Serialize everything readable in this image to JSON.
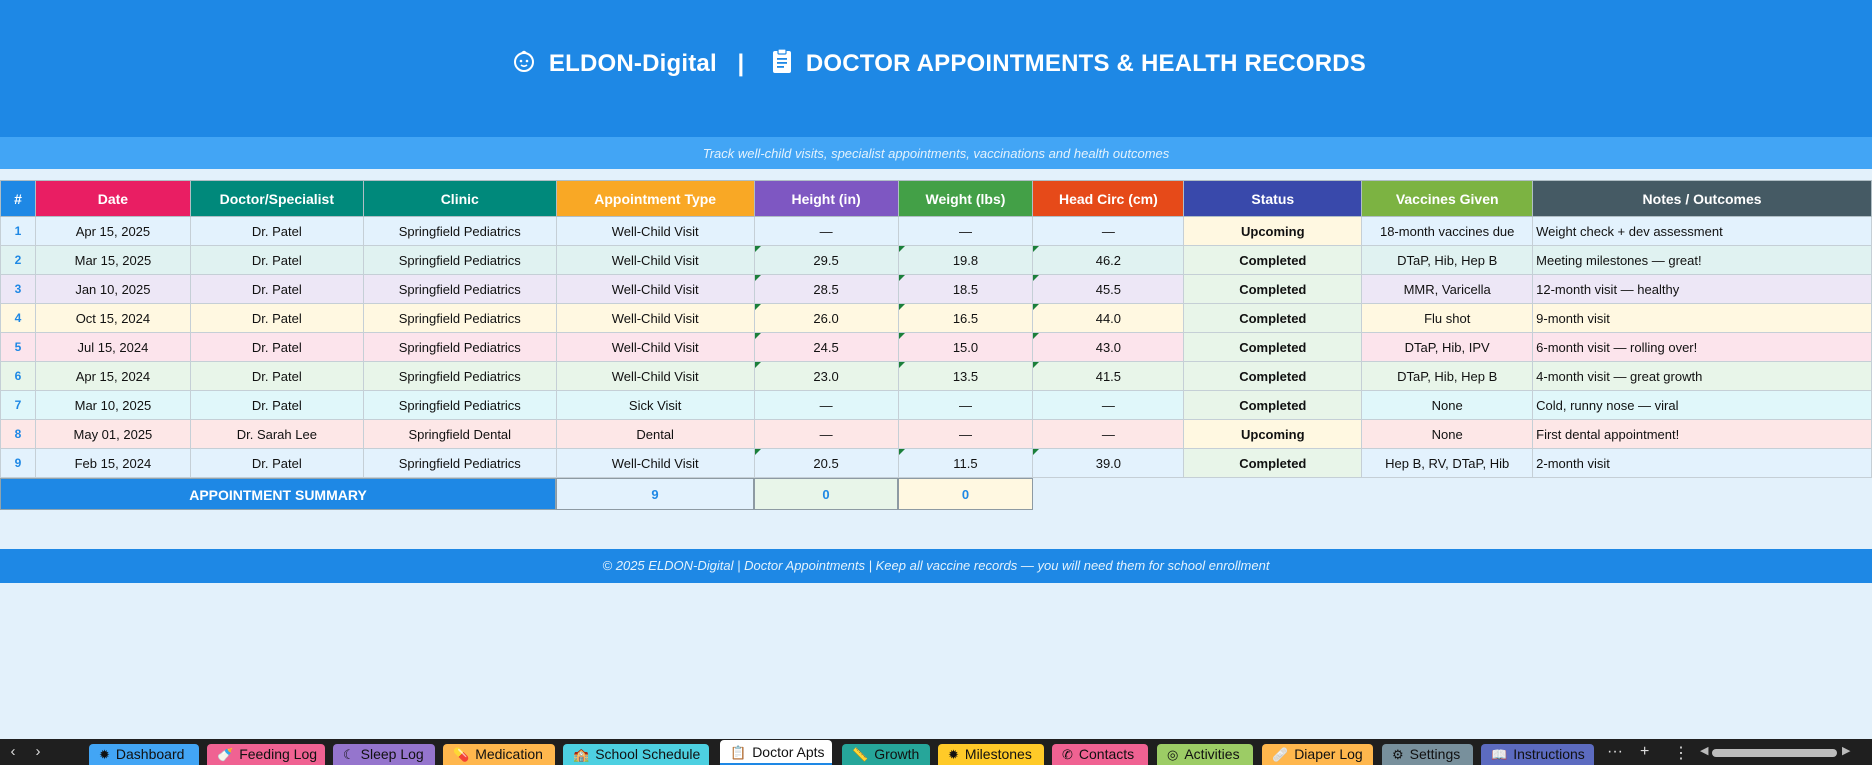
{
  "header": {
    "brand": "ELDON-Digital",
    "separator": "|",
    "title": "DOCTOR APPOINTMENTS & HEALTH RECORDS",
    "subtitle": "Track well-child visits, specialist appointments, vaccinations and health outcomes",
    "brand_icon": "baby-face-icon",
    "title_icon": "clipboard-icon"
  },
  "table": {
    "columns": [
      {
        "label": "#",
        "color": "#1e88e5"
      },
      {
        "label": "Date",
        "color": "#e91e63"
      },
      {
        "label": "Doctor/Specialist",
        "color": "#00897b"
      },
      {
        "label": "Clinic",
        "color": "#00897b"
      },
      {
        "label": "Appointment Type",
        "color": "#f9a825"
      },
      {
        "label": "Height (in)",
        "color": "#7e57c2"
      },
      {
        "label": "Weight (lbs)",
        "color": "#43a047"
      },
      {
        "label": "Head Circ (cm)",
        "color": "#e64a19"
      },
      {
        "label": "Status",
        "color": "#3949ab"
      },
      {
        "label": "Vaccines Given",
        "color": "#7cb342"
      },
      {
        "label": "Notes / Outcomes",
        "color": "#455a64"
      }
    ],
    "rows": [
      {
        "num": "1",
        "date": "Apr 15, 2025",
        "doctor": "Dr. Patel",
        "clinic": "Springfield Pediatrics",
        "type": "Well-Child Visit",
        "height": "—",
        "weight": "—",
        "head": "—",
        "status": "Upcoming",
        "vaccines": "18-month vaccines due",
        "notes": "Weight check + dev assessment",
        "bg": "#e3f2fd"
      },
      {
        "num": "2",
        "date": "Mar 15, 2025",
        "doctor": "Dr. Patel",
        "clinic": "Springfield Pediatrics",
        "type": "Well-Child Visit",
        "height": "29.5",
        "weight": "19.8",
        "head": "46.2",
        "status": "Completed",
        "vaccines": "DTaP, Hib, Hep B",
        "notes": "Meeting milestones — great!",
        "bg": "#e0f2f1"
      },
      {
        "num": "3",
        "date": "Jan 10, 2025",
        "doctor": "Dr. Patel",
        "clinic": "Springfield Pediatrics",
        "type": "Well-Child Visit",
        "height": "28.5",
        "weight": "18.5",
        "head": "45.5",
        "status": "Completed",
        "vaccines": "MMR, Varicella",
        "notes": "12-month visit — healthy",
        "bg": "#ede7f6"
      },
      {
        "num": "4",
        "date": "Oct 15, 2024",
        "doctor": "Dr. Patel",
        "clinic": "Springfield Pediatrics",
        "type": "Well-Child Visit",
        "height": "26.0",
        "weight": "16.5",
        "head": "44.0",
        "status": "Completed",
        "vaccines": "Flu shot",
        "notes": "9-month visit",
        "bg": "#fff8e1"
      },
      {
        "num": "5",
        "date": "Jul 15, 2024",
        "doctor": "Dr. Patel",
        "clinic": "Springfield Pediatrics",
        "type": "Well-Child Visit",
        "height": "24.5",
        "weight": "15.0",
        "head": "43.0",
        "status": "Completed",
        "vaccines": "DTaP, Hib, IPV",
        "notes": "6-month visit — rolling over!",
        "bg": "#fce4ec"
      },
      {
        "num": "6",
        "date": "Apr 15, 2024",
        "doctor": "Dr. Patel",
        "clinic": "Springfield Pediatrics",
        "type": "Well-Child Visit",
        "height": "23.0",
        "weight": "13.5",
        "head": "41.5",
        "status": "Completed",
        "vaccines": "DTaP, Hib, Hep B",
        "notes": "4-month visit — great growth",
        "bg": "#e8f5e9"
      },
      {
        "num": "7",
        "date": "Mar 10, 2025",
        "doctor": "Dr. Patel",
        "clinic": "Springfield Pediatrics",
        "type": "Sick Visit",
        "height": "—",
        "weight": "—",
        "head": "—",
        "status": "Completed",
        "vaccines": "None",
        "notes": "Cold, runny nose — viral",
        "bg": "#e0f7fa"
      },
      {
        "num": "8",
        "date": "May 01, 2025",
        "doctor": "Dr. Sarah Lee",
        "clinic": "Springfield Dental",
        "type": "Dental",
        "height": "—",
        "weight": "—",
        "head": "—",
        "status": "Upcoming",
        "vaccines": "None",
        "notes": "First dental appointment!",
        "bg": "#fde7e7"
      },
      {
        "num": "9",
        "date": "Feb 15, 2024",
        "doctor": "Dr. Patel",
        "clinic": "Springfield Pediatrics",
        "type": "Well-Child Visit",
        "height": "20.5",
        "weight": "11.5",
        "head": "39.0",
        "status": "Completed",
        "vaccines": "Hep B, RV, DTaP, Hib",
        "notes": "2-month visit",
        "bg": "#e3f2fd"
      }
    ]
  },
  "summary": {
    "label": "APPOINTMENT SUMMARY",
    "count": "9",
    "value2": "0",
    "value3": "0"
  },
  "footer": {
    "text": "© 2025 ELDON-Digital | Doctor Appointments | Keep all vaccine records — you will need them for school enrollment"
  },
  "sheet_tabs": [
    {
      "label": "Dashboard",
      "icon": "sun-icon",
      "color": "#42a5f5"
    },
    {
      "label": "Feeding Log",
      "icon": "bottle-icon",
      "color": "#f06292"
    },
    {
      "label": "Sleep Log",
      "icon": "moon-icon",
      "color": "#9575cd"
    },
    {
      "label": "Medication",
      "icon": "pill-icon",
      "color": "#ffb74d"
    },
    {
      "label": "School Schedule",
      "icon": "school-icon",
      "color": "#4dd0e1"
    },
    {
      "label": "Doctor Apts",
      "icon": "clipboard-icon",
      "color": "#ffffff",
      "active": true
    },
    {
      "label": "Growth",
      "icon": "ruler-icon",
      "color": "#26a69a"
    },
    {
      "label": "Milestones",
      "icon": "star-icon",
      "color": "#ffca28"
    },
    {
      "label": "Contacts",
      "icon": "phone-icon",
      "color": "#f06292"
    },
    {
      "label": "Activities",
      "icon": "target-icon",
      "color": "#9ccc65"
    },
    {
      "label": "Diaper Log",
      "icon": "bandage-icon",
      "color": "#ffb74d"
    },
    {
      "label": "Settings",
      "icon": "gear-icon",
      "color": "#78909c"
    },
    {
      "label": "Instructions",
      "icon": "book-icon",
      "color": "#5c6bc0"
    }
  ],
  "tabbar_controls": {
    "prev": "‹",
    "next": "›",
    "more": "···",
    "add": "+",
    "options": "⋮"
  }
}
